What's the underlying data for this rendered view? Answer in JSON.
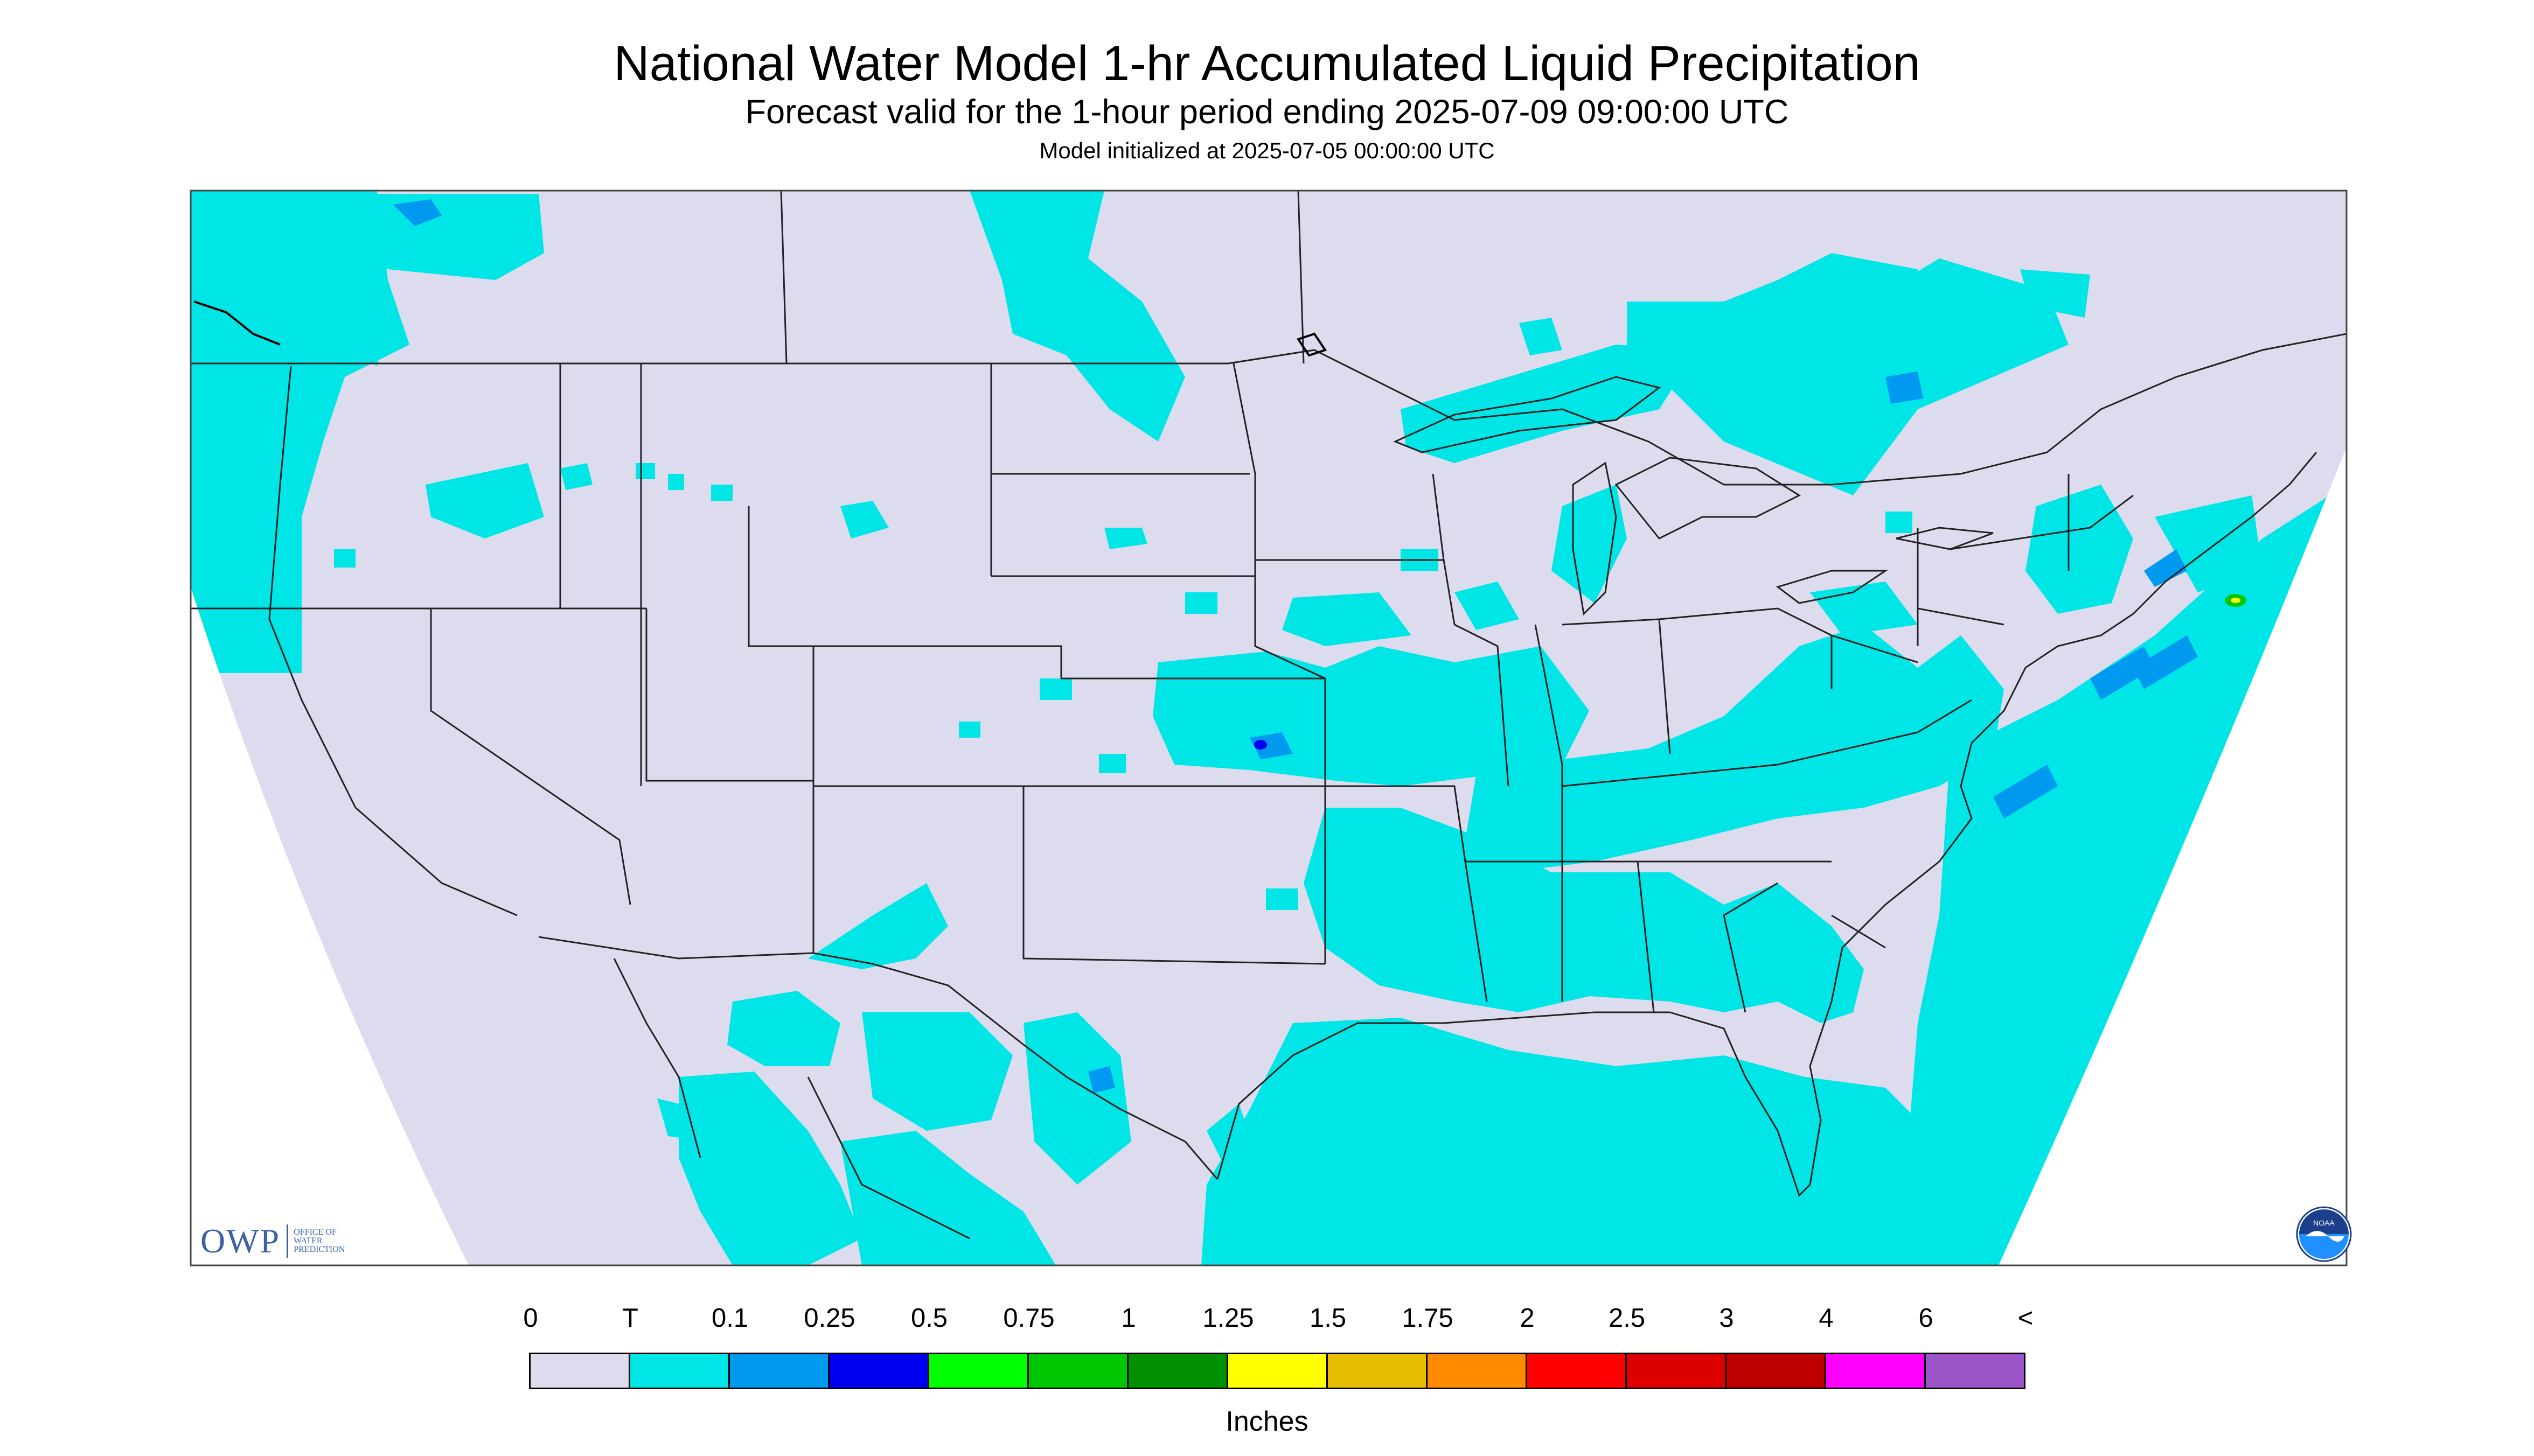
{
  "header": {
    "title": "National Water Model 1-hr Accumulated Liquid Precipitation",
    "subtitle": "Forecast valid for the 1-hour period ending 2025-07-09 09:00:00 UTC",
    "init": "Model initialized at 2025-07-05 00:00:00 UTC"
  },
  "logos": {
    "owp_abbr": "OWP",
    "owp_full": [
      "OFFICE OF",
      "WATER",
      "PREDICTION"
    ],
    "noaa": "NOAA"
  },
  "legend": {
    "ticks": [
      "0",
      "T",
      "0.1",
      "0.25",
      "0.5",
      "0.75",
      "1",
      "1.25",
      "1.5",
      "1.75",
      "2",
      "2.5",
      "3",
      "4",
      "6",
      "<"
    ],
    "colors": [
      "#dcdcee",
      "#00e6e6",
      "#0099f0",
      "#0000f0",
      "#00ff00",
      "#00c800",
      "#009000",
      "#ffff00",
      "#e6be00",
      "#ff8c00",
      "#ff0000",
      "#dc0000",
      "#be0000",
      "#ff00ff",
      "#9b55c8"
    ],
    "unit": "Inches"
  },
  "map": {
    "background": "#dcdcee",
    "trace_color": "#00e6e6",
    "light_color": "#0099f0",
    "moderate_color": "#0000f0"
  }
}
